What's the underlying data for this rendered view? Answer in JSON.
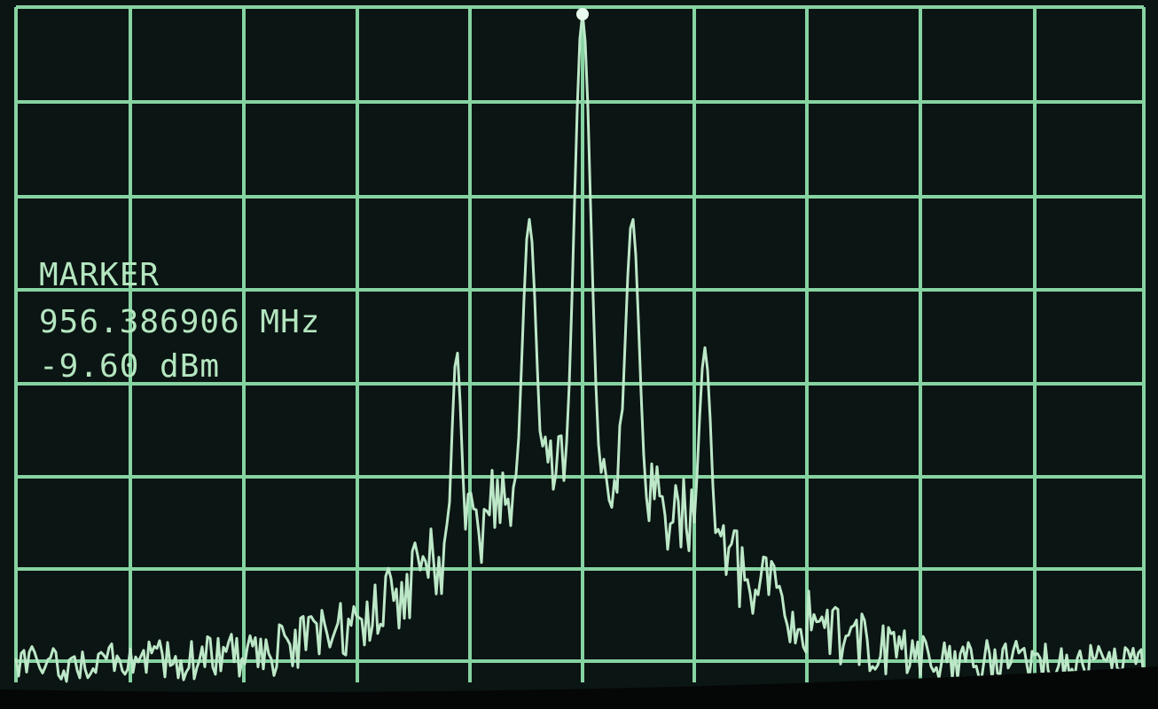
{
  "marker": {
    "title": "MARKER",
    "frequency": "956.386906 MHz",
    "level": "-9.60 dBm"
  }
}
